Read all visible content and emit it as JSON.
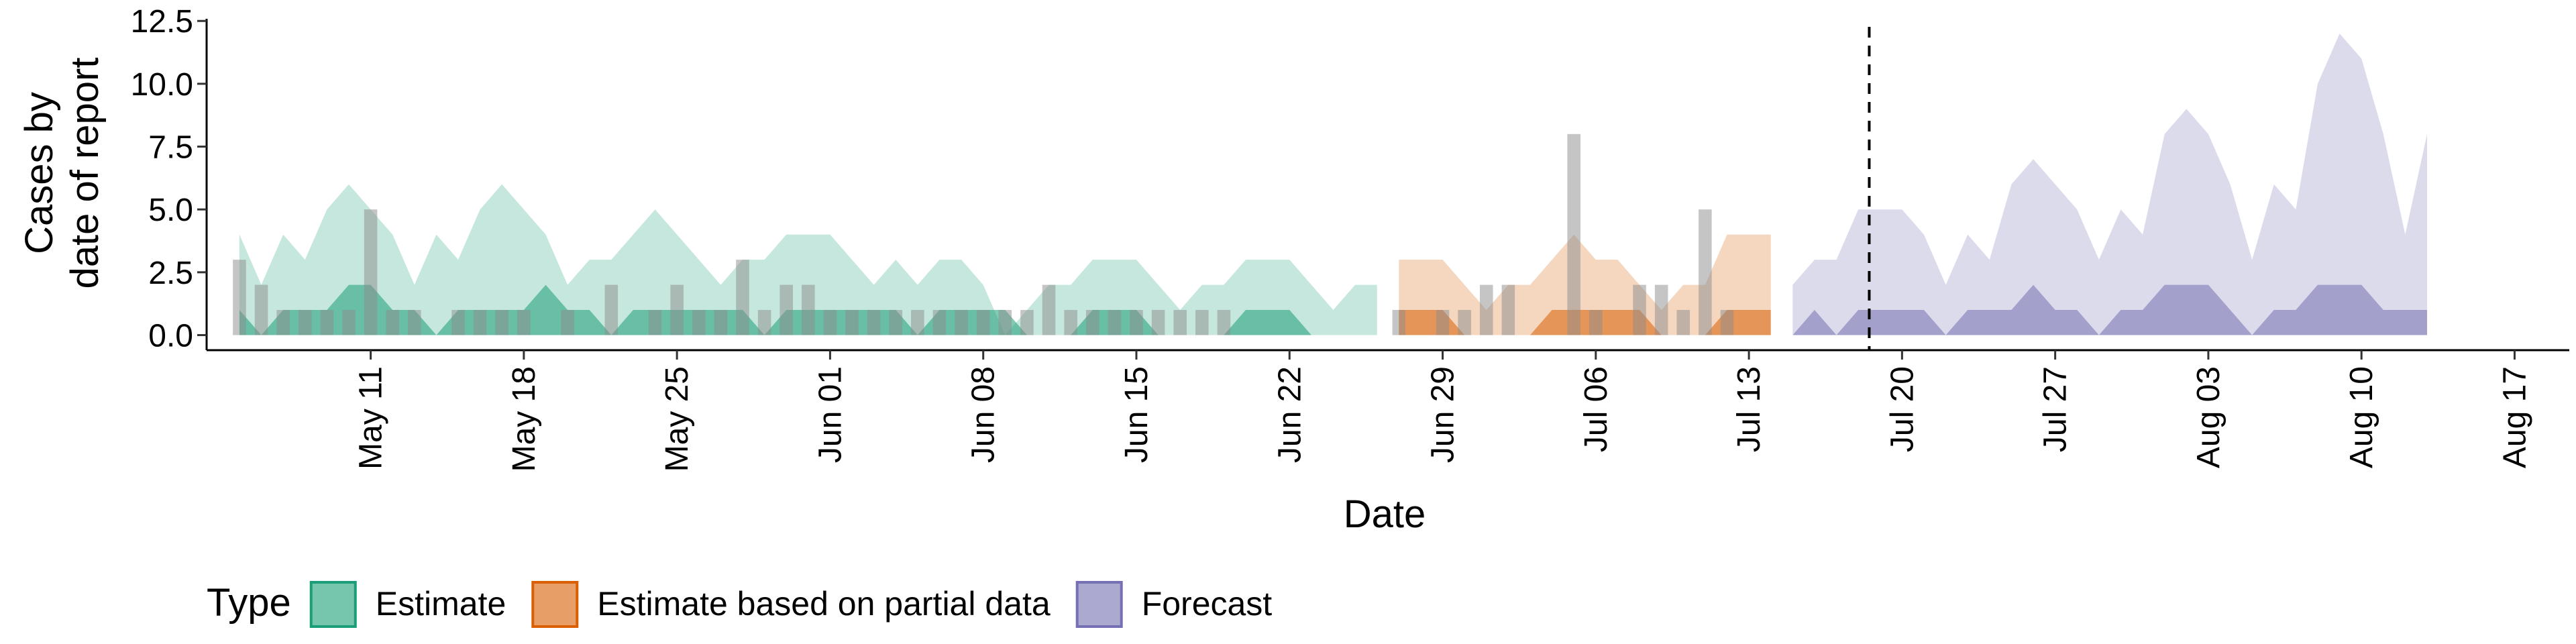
{
  "chart_data": {
    "type": "area",
    "title": "",
    "xlabel": "Date",
    "ylabel_lines": [
      "Cases by",
      "date of report"
    ],
    "ylim": [
      -0.6,
      12.8
    ],
    "yticks": [
      0,
      2.5,
      5,
      7.5,
      10,
      12.5
    ],
    "ytick_labels": [
      "0.0",
      "2.5",
      "5.0",
      "7.5",
      "10.0",
      "12.5"
    ],
    "x_start": "May 05",
    "x_range_days": [
      -1.5,
      106.5
    ],
    "xticks": [
      {
        "day": 6,
        "label": "May 11"
      },
      {
        "day": 13,
        "label": "May 18"
      },
      {
        "day": 20,
        "label": "May 25"
      },
      {
        "day": 27,
        "label": "Jun 01"
      },
      {
        "day": 34,
        "label": "Jun 08"
      },
      {
        "day": 41,
        "label": "Jun 15"
      },
      {
        "day": 48,
        "label": "Jun 22"
      },
      {
        "day": 55,
        "label": "Jun 29"
      },
      {
        "day": 62,
        "label": "Jul 06"
      },
      {
        "day": 69,
        "label": "Jul 13"
      },
      {
        "day": 76,
        "label": "Jul 20"
      },
      {
        "day": 83,
        "label": "Jul 27"
      },
      {
        "day": 90,
        "label": "Aug 03"
      },
      {
        "day": 97,
        "label": "Aug 10"
      },
      {
        "day": 104,
        "label": "Aug 17"
      }
    ],
    "vline_day": 74.5,
    "legend": {
      "title": "Type",
      "position": "bottom",
      "entries": [
        {
          "label": "Estimate",
          "fill": "#1b9e77",
          "stroke": "#1b9e77"
        },
        {
          "label": "Estimate based on partial data",
          "fill": "#d95f02",
          "stroke": "#d95f02"
        },
        {
          "label": "Forecast",
          "fill": "#7570b3",
          "stroke": "#7570b3"
        }
      ]
    },
    "series": [
      {
        "name": "Estimate",
        "color": "#1b9e77",
        "start_day": 0,
        "outer_upper": [
          4,
          2,
          4,
          3,
          5,
          6,
          5,
          4,
          2,
          4,
          3,
          5,
          6,
          5,
          4,
          2,
          3,
          3,
          4,
          5,
          4,
          3,
          2,
          3,
          3,
          4,
          4,
          4,
          3,
          2,
          3,
          2,
          3,
          3,
          2,
          0,
          1,
          2,
          2,
          3,
          3,
          3,
          2,
          1,
          2,
          2,
          3,
          3,
          3,
          2,
          1,
          2,
          2
        ],
        "inner_upper": [
          1,
          0,
          1,
          1,
          1,
          2,
          2,
          1,
          1,
          0,
          1,
          1,
          1,
          1,
          2,
          1,
          1,
          0,
          1,
          1,
          1,
          1,
          1,
          1,
          0,
          1,
          1,
          1,
          1,
          1,
          1,
          0,
          1,
          1,
          1,
          1,
          0,
          0,
          0,
          1,
          1,
          1,
          0,
          0,
          0,
          0,
          1,
          1,
          1,
          0,
          0,
          0,
          0
        ]
      },
      {
        "name": "Estimate based on partial data",
        "color": "#d95f02",
        "start_day": 53,
        "outer_upper": [
          3,
          3,
          3,
          2,
          1,
          2,
          2,
          3,
          4,
          3,
          3,
          2,
          1,
          2,
          2,
          4,
          4,
          4
        ],
        "inner_upper": [
          1,
          1,
          1,
          0,
          0,
          0,
          0,
          1,
          1,
          1,
          1,
          1,
          0,
          0,
          0,
          1,
          1,
          1
        ]
      },
      {
        "name": "Forecast",
        "color": "#7570b3",
        "start_day": 71,
        "outer_upper": [
          2,
          3,
          3,
          5,
          5,
          5,
          4,
          2,
          4,
          3,
          6,
          7,
          6,
          5,
          3,
          5,
          4,
          8,
          9,
          8,
          6,
          3,
          6,
          5,
          10,
          12,
          11,
          8,
          4,
          8
        ],
        "inner_upper": [
          0,
          1,
          0,
          1,
          1,
          1,
          1,
          0,
          1,
          1,
          1,
          2,
          1,
          1,
          0,
          1,
          1,
          2,
          2,
          2,
          1,
          0,
          1,
          1,
          2,
          2,
          2,
          1,
          1,
          1
        ]
      }
    ],
    "reported_cases": {
      "color": "#8c8c8c",
      "start_day": 0,
      "values": [
        3,
        2,
        1,
        1,
        1,
        1,
        5,
        1,
        1,
        0,
        1,
        1,
        1,
        1,
        0,
        1,
        0,
        2,
        0,
        1,
        2,
        1,
        1,
        3,
        1,
        2,
        2,
        1,
        1,
        1,
        1,
        1,
        1,
        1,
        1,
        1,
        1,
        2,
        1,
        1,
        1,
        1,
        1,
        1,
        1,
        1,
        0,
        0,
        0,
        0,
        0,
        0,
        0,
        1,
        0,
        1,
        1,
        2,
        2,
        0,
        0,
        8,
        1,
        0,
        2,
        2,
        1,
        5,
        1
      ]
    }
  }
}
